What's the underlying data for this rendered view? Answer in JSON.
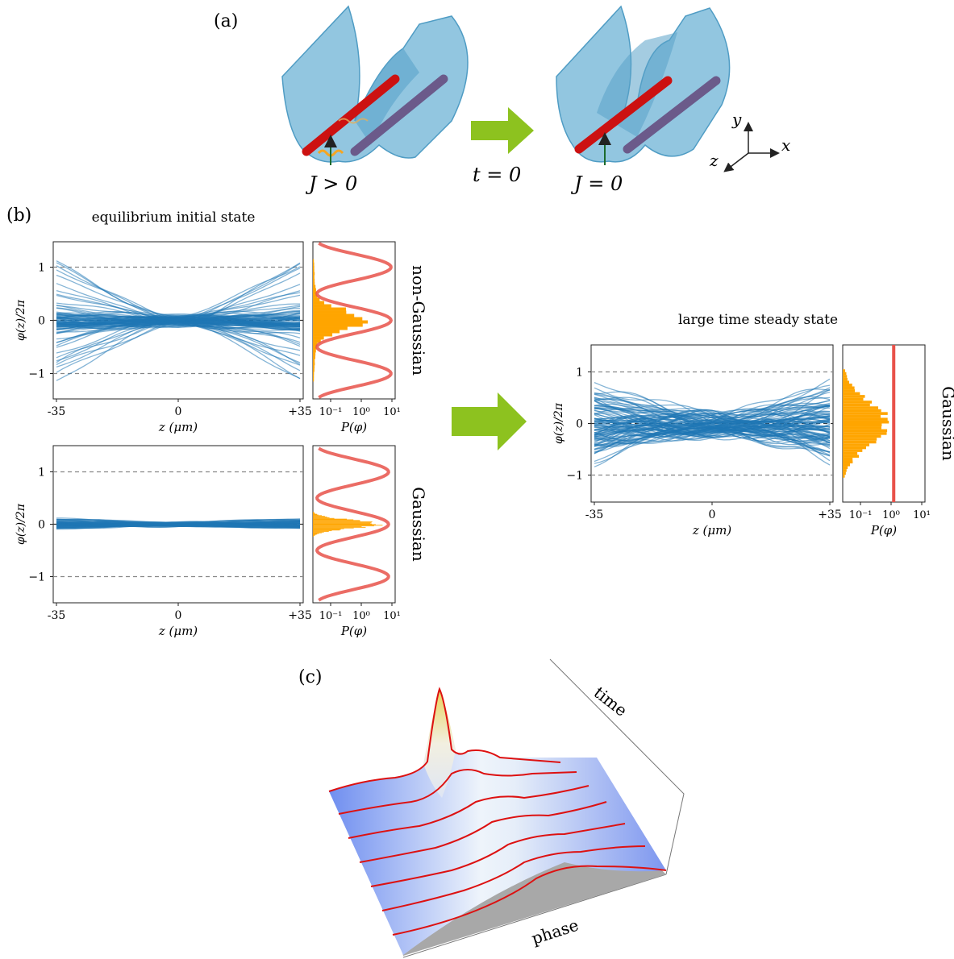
{
  "panel_a": {
    "label": "(a)",
    "left_coupling": "J > 0",
    "arrow_label": "t = 0",
    "right_coupling": "J = 0",
    "axes": {
      "y": "y",
      "z": "z",
      "x": "x"
    }
  },
  "panel_b": {
    "label": "(b)",
    "initial_title": "equilibrium initial state",
    "steady_title": "large time steady state",
    "plots": {
      "nongauss": {
        "side_label": "non-Gaussian"
      },
      "gauss": {
        "side_label": "Gaussian"
      },
      "steady": {
        "side_label": "Gaussian"
      }
    },
    "ylabel": "φ(z)/2π",
    "xlabel": "z (μm)",
    "hist_xlabel": "P(φ)",
    "x_ticks": [
      "-35",
      "0",
      "+35"
    ],
    "y_ticks": [
      "1",
      "0",
      "−1"
    ],
    "hist_ticks": [
      "10⁻¹",
      "10⁰",
      "10¹"
    ]
  },
  "panel_c": {
    "label": "(c)",
    "time_label": "time",
    "phase_label": "phase"
  },
  "colors": {
    "trace": "#1f77b4",
    "hist": "#ffa500",
    "fit": "#e8524a",
    "arrow": "#8dc21f",
    "trap": "#6db3d6",
    "tube": "#cc1111"
  }
}
